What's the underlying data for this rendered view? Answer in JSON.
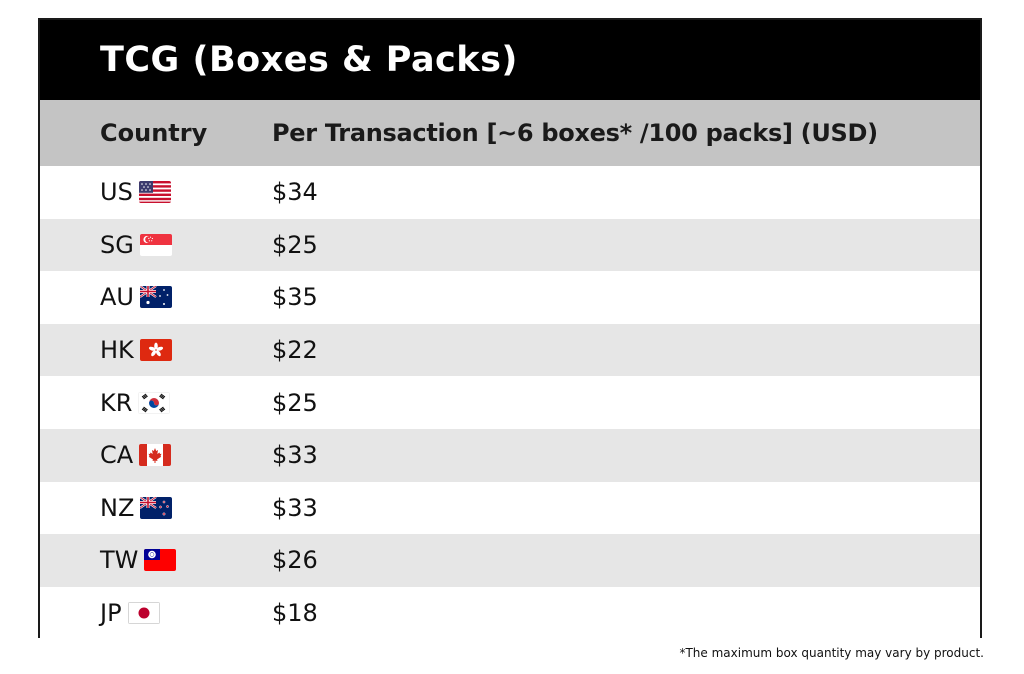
{
  "title": "TCG (Boxes & Packs)",
  "table": {
    "headers": {
      "country": "Country",
      "price": "Per Transaction [~6 boxes* /100 packs] (USD)"
    },
    "rows": [
      {
        "code": "US",
        "flag_icon": "us-flag-icon",
        "price": "$34"
      },
      {
        "code": "SG",
        "flag_icon": "sg-flag-icon",
        "price": "$25"
      },
      {
        "code": "AU",
        "flag_icon": "au-flag-icon",
        "price": "$35"
      },
      {
        "code": "HK",
        "flag_icon": "hk-flag-icon",
        "price": "$22"
      },
      {
        "code": "KR",
        "flag_icon": "kr-flag-icon",
        "price": "$25"
      },
      {
        "code": "CA",
        "flag_icon": "ca-flag-icon",
        "price": "$33"
      },
      {
        "code": "NZ",
        "flag_icon": "nz-flag-icon",
        "price": "$33"
      },
      {
        "code": "TW",
        "flag_icon": "tw-flag-icon",
        "price": "$26"
      },
      {
        "code": "JP",
        "flag_icon": "jp-flag-icon",
        "price": "$18"
      }
    ]
  },
  "footnote": "*The maximum box quantity may vary by product.",
  "colors": {
    "title_bg": "#000000",
    "header_bg": "#c4c4c4",
    "row_alt_bg": "#e6e6e6"
  }
}
